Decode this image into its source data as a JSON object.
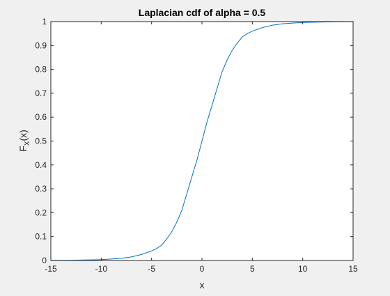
{
  "chart_data": {
    "type": "line",
    "title": "Laplacian cdf of alpha = 0.5",
    "xlabel": "x",
    "ylabel": "F",
    "ylabel_sub": "X",
    "ylabel_suffix": "(x)",
    "xlim": [
      -15,
      15
    ],
    "ylim": [
      0,
      1
    ],
    "xticks": [
      -15,
      -10,
      -5,
      0,
      5,
      10,
      15
    ],
    "xtick_labels": [
      "-15",
      "-10",
      "-5",
      "0",
      "5",
      "10",
      "15"
    ],
    "yticks": [
      0,
      0.1,
      0.2,
      0.3,
      0.4,
      0.5,
      0.6,
      0.7,
      0.8,
      0.9,
      1
    ],
    "ytick_labels": [
      "0",
      "0.1",
      "0.2",
      "0.3",
      "0.4",
      "0.5",
      "0.6",
      "0.7",
      "0.8",
      "0.9",
      "1"
    ],
    "grid": false,
    "line_color": "#0072BD",
    "series": [
      {
        "x": [
          -15,
          -14,
          -13,
          -12,
          -11,
          -10,
          -9,
          -8,
          -7,
          -6,
          -5,
          -4.5,
          -4,
          -3.5,
          -3,
          -2.5,
          -2,
          -1.5,
          -1,
          -0.5,
          0,
          0.5,
          1,
          1.5,
          2,
          2.5,
          3,
          3.5,
          4,
          4.5,
          5,
          6,
          7,
          8,
          9,
          10,
          11,
          12,
          13,
          14,
          15
        ],
        "y": [
          0.0005,
          0.0009,
          0.0012,
          0.0018,
          0.0025,
          0.0035,
          0.006,
          0.009,
          0.015,
          0.025,
          0.04,
          0.05,
          0.064,
          0.09,
          0.12,
          0.16,
          0.21,
          0.28,
          0.35,
          0.42,
          0.5,
          0.58,
          0.65,
          0.72,
          0.79,
          0.84,
          0.88,
          0.91,
          0.936,
          0.95,
          0.96,
          0.975,
          0.985,
          0.991,
          0.994,
          0.9965,
          0.9975,
          0.9982,
          0.9988,
          0.9991,
          0.9995
        ]
      }
    ]
  }
}
